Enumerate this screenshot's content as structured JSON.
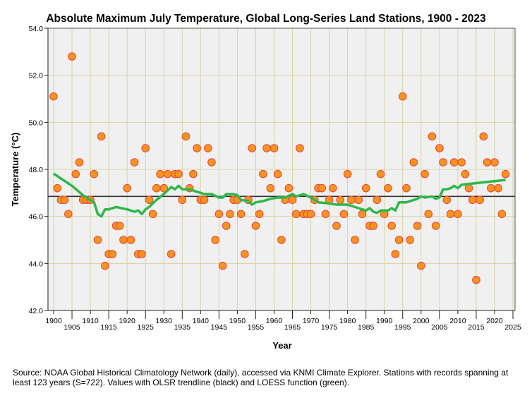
{
  "chart_data": {
    "type": "scatter",
    "title": "Absolute Maximum July Temperature, Global Long-Series Land Stations, 1900 - 2023",
    "xlabel": "Year",
    "ylabel": "Temperature (°C)",
    "xlim": [
      1899,
      2026
    ],
    "ylim": [
      42.0,
      54.0
    ],
    "x_ticks": [
      1900,
      1905,
      1910,
      1915,
      1920,
      1925,
      1930,
      1935,
      1940,
      1945,
      1950,
      1955,
      1960,
      1965,
      1970,
      1975,
      1980,
      1985,
      1990,
      1995,
      2000,
      2005,
      2010,
      2015,
      2020,
      2025
    ],
    "y_ticks": [
      "42.0",
      "44.0",
      "46.0",
      "48.0",
      "50.0",
      "52.0",
      "54.0"
    ],
    "grid": true,
    "colors": {
      "points": "#f7941d",
      "point_edge": "#e8423c",
      "loess": "#2db84a",
      "olsr": "#333333",
      "plot_bg": "#f0f0f0",
      "grid": "#d9d3a6"
    },
    "points": {
      "x": [
        1900,
        1901,
        1902,
        1903,
        1904,
        1905,
        1906,
        1907,
        1908,
        1909,
        1910,
        1911,
        1912,
        1913,
        1914,
        1915,
        1916,
        1917,
        1918,
        1919,
        1920,
        1921,
        1922,
        1923,
        1924,
        1925,
        1926,
        1927,
        1928,
        1929,
        1930,
        1931,
        1932,
        1933,
        1934,
        1935,
        1936,
        1937,
        1938,
        1939,
        1940,
        1941,
        1942,
        1943,
        1944,
        1945,
        1946,
        1947,
        1948,
        1949,
        1950,
        1951,
        1952,
        1953,
        1954,
        1955,
        1956,
        1957,
        1958,
        1959,
        1960,
        1961,
        1962,
        1963,
        1964,
        1965,
        1966,
        1967,
        1968,
        1969,
        1970,
        1971,
        1972,
        1973,
        1974,
        1975,
        1976,
        1977,
        1978,
        1979,
        1980,
        1981,
        1982,
        1983,
        1984,
        1985,
        1986,
        1987,
        1988,
        1989,
        1990,
        1991,
        1992,
        1993,
        1994,
        1995,
        1996,
        1997,
        1998,
        1999,
        2000,
        2001,
        2002,
        2003,
        2004,
        2005,
        2006,
        2007,
        2008,
        2009,
        2010,
        2011,
        2012,
        2013,
        2014,
        2015,
        2016,
        2017,
        2018,
        2019,
        2020,
        2021,
        2022,
        2023
      ],
      "y": [
        51.1,
        47.2,
        46.7,
        46.7,
        46.1,
        52.8,
        47.8,
        48.3,
        46.7,
        46.7,
        46.7,
        47.8,
        45.0,
        49.4,
        43.9,
        44.4,
        44.4,
        45.6,
        45.6,
        45.0,
        47.2,
        45.0,
        48.3,
        44.4,
        44.4,
        48.9,
        46.7,
        46.1,
        47.2,
        47.8,
        47.2,
        47.8,
        44.4,
        47.8,
        47.8,
        46.7,
        49.4,
        47.2,
        47.8,
        48.9,
        46.7,
        46.7,
        48.9,
        48.3,
        45.0,
        46.1,
        43.9,
        45.6,
        46.1,
        46.7,
        46.7,
        46.1,
        44.4,
        46.7,
        48.9,
        45.6,
        46.1,
        47.8,
        48.9,
        47.2,
        48.9,
        47.8,
        45.0,
        46.7,
        47.2,
        46.7,
        46.1,
        48.9,
        46.1,
        46.1,
        46.1,
        46.7,
        47.2,
        47.2,
        46.1,
        46.7,
        47.2,
        45.6,
        46.7,
        46.1,
        47.8,
        46.7,
        45.0,
        46.7,
        46.1,
        47.2,
        45.6,
        45.6,
        46.7,
        47.8,
        46.1,
        47.2,
        45.6,
        44.4,
        45.0,
        51.1,
        47.2,
        45.0,
        48.3,
        45.6,
        43.9,
        47.8,
        46.1,
        49.4,
        45.6,
        48.9,
        48.3,
        46.7,
        46.1,
        48.3,
        46.1,
        48.3,
        47.8,
        47.2,
        46.7,
        43.3,
        46.7,
        49.4,
        48.3,
        47.2,
        48.3,
        47.2,
        46.1,
        47.8
      ]
    },
    "olsr_trendline": {
      "x": [
        1899,
        2026
      ],
      "y": [
        46.85,
        46.85
      ]
    },
    "loess": {
      "x": [
        1900,
        1905,
        1908,
        1911,
        1912,
        1913,
        1914,
        1915,
        1917,
        1920,
        1922,
        1923,
        1924,
        1925,
        1926,
        1928,
        1930,
        1932,
        1933,
        1934,
        1935,
        1937,
        1939,
        1941,
        1943,
        1945,
        1946,
        1947,
        1949,
        1950,
        1951,
        1953,
        1954,
        1955,
        1957,
        1959,
        1961,
        1963,
        1965,
        1966,
        1968,
        1970,
        1972,
        1975,
        1977,
        1980,
        1983,
        1985,
        1986,
        1987,
        1988,
        1989,
        1991,
        1992,
        1993,
        1994,
        1996,
        1999,
        2000,
        2001,
        2003,
        2004,
        2005,
        2006,
        2007,
        2008,
        2009,
        2010,
        2011,
        2023
      ],
      "y": [
        47.82,
        47.3,
        46.9,
        46.6,
        46.1,
        46.0,
        46.3,
        46.3,
        46.4,
        46.3,
        46.2,
        46.25,
        46.1,
        46.3,
        46.4,
        46.7,
        46.95,
        47.25,
        47.15,
        47.3,
        47.15,
        47.15,
        47.05,
        46.95,
        46.95,
        46.8,
        46.8,
        46.95,
        46.95,
        46.9,
        46.7,
        46.65,
        46.5,
        46.6,
        46.65,
        46.75,
        46.8,
        46.8,
        46.95,
        46.85,
        46.95,
        46.8,
        46.6,
        46.55,
        46.5,
        46.5,
        46.35,
        46.25,
        46.35,
        46.2,
        46.15,
        46.25,
        46.25,
        46.35,
        46.25,
        46.6,
        46.6,
        46.75,
        46.85,
        46.8,
        46.85,
        46.75,
        46.8,
        47.15,
        47.15,
        47.2,
        47.3,
        47.2,
        47.35,
        47.55
      ]
    },
    "source_note": "Source: NOAA Global Historical Climatology Network (daily), accessed via KNMI Climate Explorer. Stations with records spanning at least 123 years (S=722). Values with OLSR trendline (black) and LOESS function (green)."
  }
}
